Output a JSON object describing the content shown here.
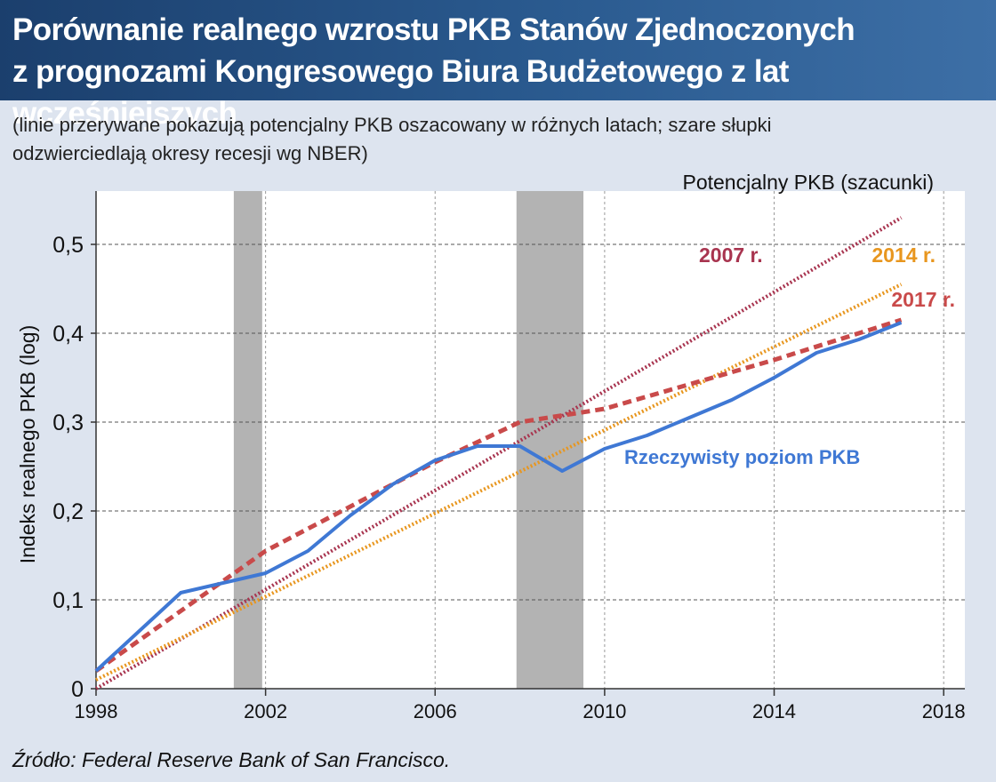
{
  "title_line1": "Porównanie realnego wzrostu PKB Stanów Zjednoczonych",
  "title_line2": "z prognozami Kongresowego Biura Budżetowego z lat wcześniejszych",
  "subtitle_line1": "(linie przerywane pokazują potencjalny PKB oszacowany w różnych latach; szare słupki",
  "subtitle_line2": "odzwierciedlają okresy recesji wg NBER)",
  "source": "Źródło: Federal Reserve Bank of San Francisco.",
  "chart_data": {
    "type": "line",
    "ylabel": "Indeks realnego PKB (log)",
    "xlabel": "",
    "xlim": [
      1998,
      2018.5
    ],
    "ylim": [
      0,
      0.55
    ],
    "x_ticks": [
      1998,
      2002,
      2006,
      2010,
      2014,
      2018
    ],
    "x_tick_labels": [
      "1998",
      "2002",
      "2006",
      "2010",
      "2014",
      "2018"
    ],
    "y_ticks": [
      0,
      0.1,
      0.2,
      0.3,
      0.4,
      0.5
    ],
    "y_tick_labels": [
      "0",
      "0,1",
      "0,2",
      "0,3",
      "0,4",
      "0,5"
    ],
    "grid": "horizontal dashed",
    "legend_title": "Potencjalny PKB (szacunki)",
    "recessions": [
      {
        "start": 2001.25,
        "end": 2001.92
      },
      {
        "start": 2007.92,
        "end": 2009.5
      }
    ],
    "series": [
      {
        "name": "2007 r.",
        "style": "dotted",
        "color": "#a8344f",
        "x": [
          1998,
          2017
        ],
        "y": [
          0.0,
          0.53
        ]
      },
      {
        "name": "2014 r.",
        "style": "dotted",
        "color": "#e8961e",
        "x": [
          1998,
          2017
        ],
        "y": [
          0.01,
          0.455
        ]
      },
      {
        "name": "2017 r.",
        "style": "dashed",
        "color": "#c94a4a",
        "x": [
          1998,
          2002,
          2006,
          2008,
          2010,
          2014,
          2017
        ],
        "y": [
          0.02,
          0.155,
          0.255,
          0.3,
          0.315,
          0.37,
          0.415
        ]
      },
      {
        "name": "Rzeczywisty poziom PKB",
        "style": "solid",
        "color": "#3f78d4",
        "x": [
          1998,
          2000,
          2002,
          2003,
          2004,
          2005,
          2006,
          2007,
          2008,
          2009,
          2010,
          2011,
          2012,
          2013,
          2014,
          2015,
          2016,
          2017
        ],
        "y": [
          0.02,
          0.108,
          0.13,
          0.155,
          0.195,
          0.23,
          0.257,
          0.273,
          0.273,
          0.245,
          0.27,
          0.285,
          0.305,
          0.325,
          0.35,
          0.378,
          0.393,
          0.412
        ]
      }
    ]
  }
}
